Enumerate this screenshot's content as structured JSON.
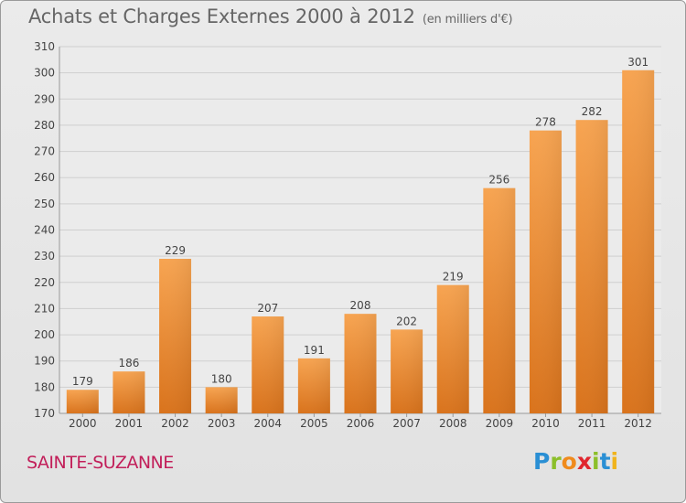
{
  "title": "Achats et Charges Externes 2000 à 2012",
  "unit_label": "(en milliers d'€)",
  "commune": "SAINTE-SUZANNE",
  "logo": {
    "text": "Proxiti",
    "letters": [
      {
        "ch": "P",
        "color": "#2a8fd4"
      },
      {
        "ch": "r",
        "color": "#8cbf2a"
      },
      {
        "ch": "o",
        "color": "#f08b1d"
      },
      {
        "ch": "x",
        "color": "#e0262e"
      },
      {
        "ch": "i",
        "color": "#8cbf2a"
      },
      {
        "ch": "t",
        "color": "#2a8fd4"
      },
      {
        "ch": "i",
        "color": "#f0b41d"
      }
    ]
  },
  "colors": {
    "bar_light": "#f7a451",
    "bar_dark": "#d9731c",
    "grid": "#cfcfcf",
    "axis_text": "#444444",
    "title": "#666666",
    "commune": "#c21f5a"
  },
  "chart_data": {
    "type": "bar",
    "title": "Achats et Charges Externes 2000 à 2012",
    "subtitle": "(en milliers d'€)",
    "xlabel": "",
    "ylabel": "",
    "categories": [
      "2000",
      "2001",
      "2002",
      "2003",
      "2004",
      "2005",
      "2006",
      "2007",
      "2008",
      "2009",
      "2010",
      "2011",
      "2012"
    ],
    "values": [
      179,
      186,
      229,
      180,
      207,
      191,
      208,
      202,
      219,
      256,
      278,
      282,
      301
    ],
    "ylim": [
      170,
      310
    ],
    "yticks": [
      170,
      180,
      190,
      200,
      210,
      220,
      230,
      240,
      250,
      260,
      270,
      280,
      290,
      300,
      310
    ],
    "grid": true,
    "legend": "none"
  }
}
